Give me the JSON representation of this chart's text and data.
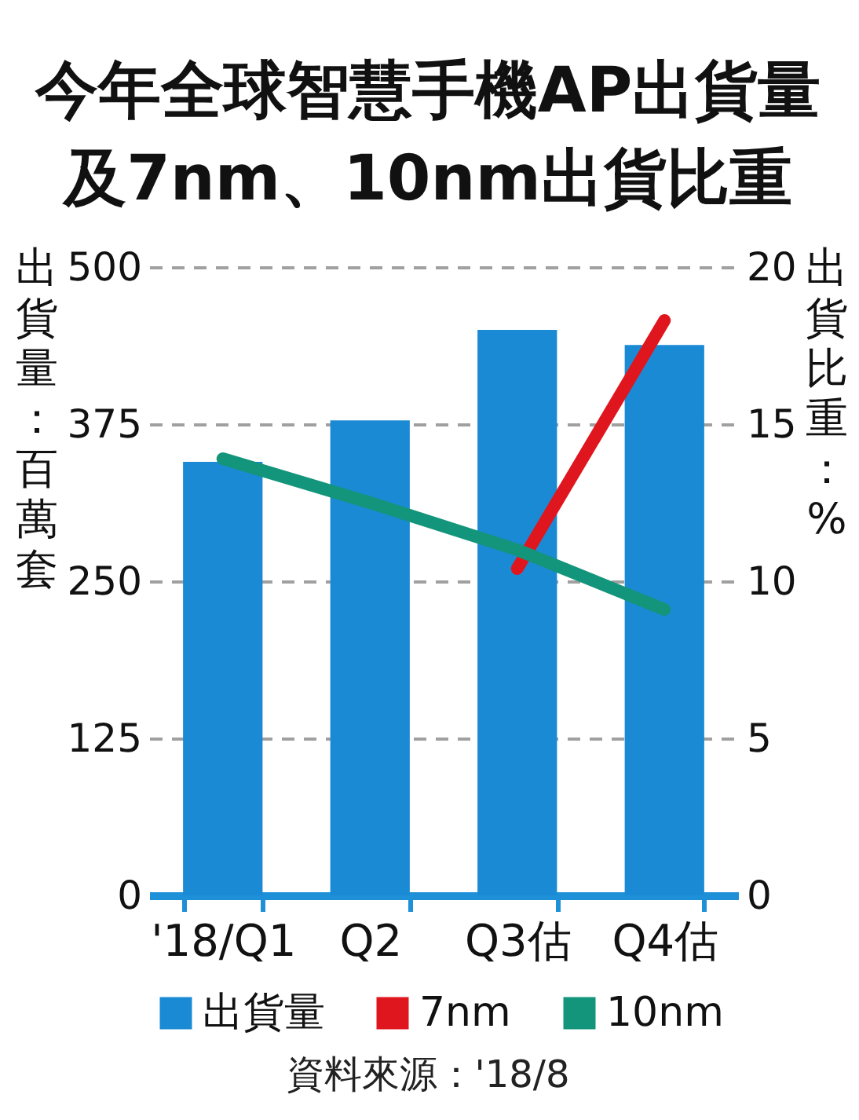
{
  "chart_data": {
    "type": "bar",
    "title": "今年全球智慧手機AP出貨量及7nm、10nm出貨比重",
    "ylabel": "出貨量：百萬套",
    "y2label": "出貨比重：%",
    "categories": [
      "'18/Q1",
      "Q2",
      "Q3估",
      "Q4估"
    ],
    "series": [
      {
        "name": "出貨量",
        "color": "#1a8ad4",
        "values": [
          345,
          378,
          450,
          438
        ]
      },
      {
        "name": "7nm",
        "type": "line",
        "axis": "y2",
        "color": "#e0161e",
        "values": [
          null,
          null,
          10.4,
          18.3
        ]
      },
      {
        "name": "10nm",
        "type": "line",
        "axis": "y2",
        "color": "#13957b",
        "values": [
          13.9,
          12.5,
          11.0,
          9.1
        ]
      }
    ],
    "ylim": [
      0,
      500
    ],
    "yticks": [
      0,
      125,
      250,
      375,
      500
    ],
    "y2lim": [
      0,
      20
    ],
    "y2ticks": [
      0,
      5,
      10,
      15,
      20
    ],
    "grid": "y",
    "legend": "bottom",
    "line_style": "solid",
    "annotations": [
      "資料來源：'18/8"
    ]
  }
}
